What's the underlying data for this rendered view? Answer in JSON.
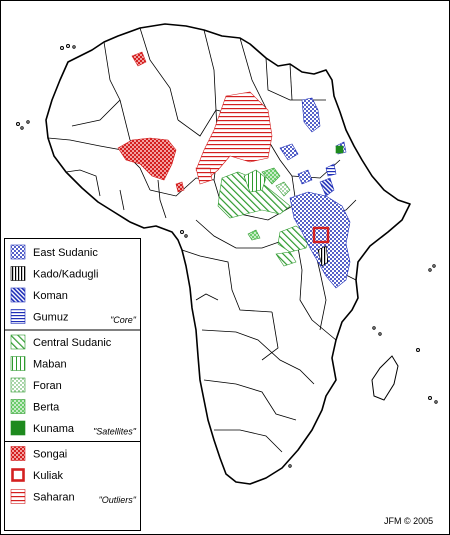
{
  "legend": {
    "groups": [
      {
        "note": "\"Core\"",
        "items": [
          {
            "label": "East Sudanic",
            "pattern": "dots-blue",
            "color": "#1f2fb8"
          },
          {
            "label": "Kado/Kadugli",
            "pattern": "vlines-black",
            "color": "#000000"
          },
          {
            "label": "Koman",
            "pattern": "diag-blue-dense",
            "color": "#1f2fb8"
          },
          {
            "label": "Gumuz",
            "pattern": "hlines-blue",
            "color": "#1f2fb8"
          }
        ]
      },
      {
        "note": "\"Satellites\"",
        "items": [
          {
            "label": "Central Sudanic",
            "pattern": "diag-green",
            "color": "#2e9a2e"
          },
          {
            "label": "Maban",
            "pattern": "vlines-green",
            "color": "#2e9a2e"
          },
          {
            "label": "Foran",
            "pattern": "dots-green",
            "color": "#2e9a2e"
          },
          {
            "label": "Berta",
            "pattern": "checker-green",
            "color": "#2e9a2e"
          },
          {
            "label": "Kunama",
            "pattern": "solid-green",
            "color": "#1e8a1e"
          }
        ]
      },
      {
        "note": "\"Outliers\"",
        "items": [
          {
            "label": "Songai",
            "pattern": "checker-red",
            "color": "#d42020"
          },
          {
            "label": "Kuliak",
            "pattern": "box-red",
            "color": "#d42020"
          },
          {
            "label": "Saharan",
            "pattern": "hlines-red",
            "color": "#d42020"
          }
        ]
      }
    ]
  },
  "credit": "JFM © 2005"
}
